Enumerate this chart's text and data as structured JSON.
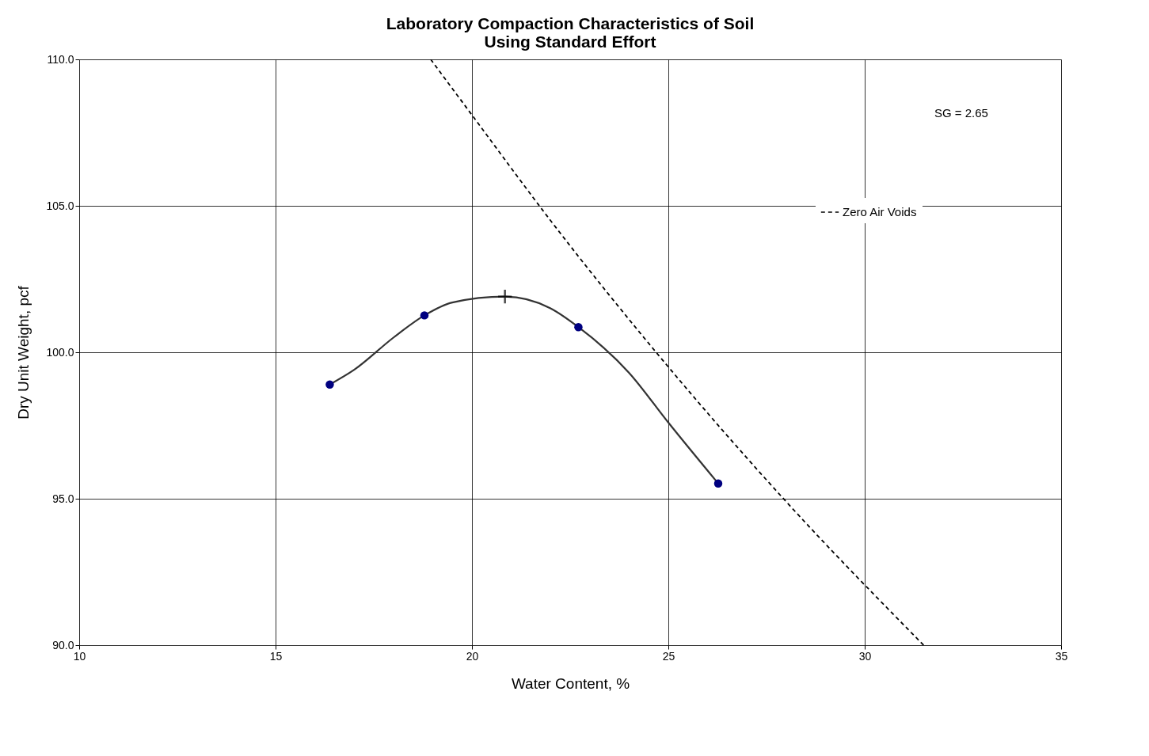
{
  "chart_data": {
    "type": "scatter",
    "title": [
      "Laboratory Compaction Characteristics of Soil",
      "Using Standard Effort"
    ],
    "xlabel": "Water Content,  %",
    "ylabel": "Dry Unit Weight, pcf",
    "xlim": [
      10,
      35
    ],
    "xticks": [
      10,
      15,
      20,
      25,
      30,
      35
    ],
    "ylim": [
      90,
      110
    ],
    "yticks": [
      {
        "value": 90,
        "label": "90.0"
      },
      {
        "value": 95,
        "label": "95.0"
      },
      {
        "value": 100,
        "label": "100.0"
      },
      {
        "value": 105,
        "label": "105.0"
      },
      {
        "value": 110,
        "label": "110.0"
      }
    ],
    "grid": true,
    "legend": "top right",
    "annotations": [
      "SG  =  2.65"
    ],
    "series": [
      {
        "type": "line",
        "color": "#333333",
        "line_style": "solid",
        "marker": "none",
        "x": [
          16.38,
          17.0,
          18.0,
          18.79,
          19.5,
          20.84,
          22.0,
          22.71,
          24.0,
          25.0,
          26.27
        ],
        "values": [
          98.9,
          99.4,
          100.5,
          101.26,
          101.7,
          101.9,
          101.5,
          100.86,
          99.3,
          97.6,
          95.52
        ]
      },
      {
        "color": "#000080",
        "marker": "circle",
        "x": [
          16.38,
          18.79,
          22.71,
          26.27
        ],
        "values": [
          98.9,
          101.26,
          100.86,
          95.52
        ]
      },
      {
        "color": "#000000",
        "marker": "cross",
        "x": [
          20.84
        ],
        "values": [
          101.9
        ]
      },
      {
        "name": "Zero Air Voids",
        "type": "line",
        "color": "#000000",
        "line_style": "dashed",
        "marker": "none",
        "x": [
          18.95,
          20.0,
          22.0,
          25.0,
          28.0,
          31.5
        ],
        "values": [
          110.0,
          108.1,
          104.5,
          99.5,
          94.9,
          90.0
        ]
      }
    ]
  }
}
